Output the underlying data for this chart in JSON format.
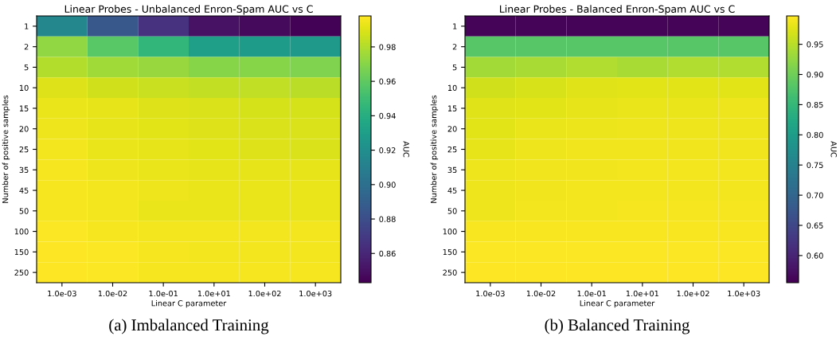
{
  "chart_data": [
    {
      "type": "heatmap",
      "title": "Linear Probes - Unbalanced Enron-Spam AUC vs C",
      "xlabel": "Linear C parameter",
      "ylabel": "Number of positive samples",
      "clabel": "AUC",
      "categories": [
        "1.0e-03",
        "1.0e-02",
        "1.0e-01",
        "1.0e+01",
        "1.0e+02",
        "1.0e+03"
      ],
      "y_categories": [
        "1",
        "2",
        "5",
        "10",
        "15",
        "20",
        "25",
        "35",
        "45",
        "50",
        "100",
        "150",
        "250"
      ],
      "cells": [
        [
          0.915,
          0.885,
          0.865,
          0.85,
          0.847,
          0.844
        ],
        [
          0.972,
          0.958,
          0.945,
          0.93,
          0.928,
          0.927
        ],
        [
          0.98,
          0.976,
          0.974,
          0.97,
          0.97,
          0.968
        ],
        [
          0.99,
          0.987,
          0.985,
          0.984,
          0.983,
          0.982
        ],
        [
          0.993,
          0.992,
          0.99,
          0.989,
          0.988,
          0.988
        ],
        [
          0.994,
          0.992,
          0.991,
          0.99,
          0.989,
          0.989
        ],
        [
          0.995,
          0.993,
          0.992,
          0.991,
          0.99,
          0.989
        ],
        [
          0.996,
          0.994,
          0.993,
          0.992,
          0.992,
          0.992
        ],
        [
          0.996,
          0.995,
          0.994,
          0.993,
          0.993,
          0.993
        ],
        [
          0.996,
          0.995,
          0.993,
          0.993,
          0.993,
          0.993
        ],
        [
          0.997,
          0.996,
          0.995,
          0.995,
          0.995,
          0.995
        ],
        [
          0.998,
          0.997,
          0.996,
          0.995,
          0.995,
          0.995
        ],
        [
          0.998,
          0.997,
          0.996,
          0.996,
          0.996,
          0.996
        ]
      ],
      "clim": [
        0.843,
        0.998
      ],
      "cticks": [
        {
          "value": 0.86,
          "label": "0.86"
        },
        {
          "value": 0.88,
          "label": "0.88"
        },
        {
          "value": 0.9,
          "label": "0.90"
        },
        {
          "value": 0.92,
          "label": "0.92"
        },
        {
          "value": 0.94,
          "label": "0.94"
        },
        {
          "value": 0.96,
          "label": "0.96"
        },
        {
          "value": 0.98,
          "label": "0.98"
        }
      ],
      "annotations": [
        "(a) Imbalanced Training"
      ]
    },
    {
      "type": "heatmap",
      "title": "Linear Probes - Balanced Enron-Spam AUC vs C",
      "xlabel": "Linear C parameter",
      "ylabel": "Number of positive samples",
      "clabel": "AUC",
      "categories": [
        "1.0e-03",
        "1.0e-02",
        "1.0e-01",
        "1.0e+01",
        "1.0e+02",
        "1.0e+03"
      ],
      "y_categories": [
        "1",
        "2",
        "5",
        "10",
        "15",
        "20",
        "25",
        "35",
        "45",
        "50",
        "100",
        "150",
        "250"
      ],
      "cells": [
        [
          0.56,
          0.56,
          0.56,
          0.56,
          0.56,
          0.56
        ],
        [
          0.88,
          0.88,
          0.88,
          0.88,
          0.88,
          0.88
        ],
        [
          0.935,
          0.94,
          0.945,
          0.94,
          0.945,
          0.945
        ],
        [
          0.965,
          0.97,
          0.975,
          0.978,
          0.978,
          0.978
        ],
        [
          0.975,
          0.978,
          0.98,
          0.982,
          0.982,
          0.985
        ],
        [
          0.978,
          0.982,
          0.984,
          0.986,
          0.986,
          0.986
        ],
        [
          0.98,
          0.985,
          0.987,
          0.988,
          0.988,
          0.988
        ],
        [
          0.985,
          0.987,
          0.988,
          0.989,
          0.989,
          0.989
        ],
        [
          0.986,
          0.988,
          0.989,
          0.99,
          0.99,
          0.99
        ],
        [
          0.986,
          0.99,
          0.99,
          0.991,
          0.991,
          0.991
        ],
        [
          0.993,
          0.993,
          0.993,
          0.993,
          0.993,
          0.993
        ],
        [
          0.994,
          0.994,
          0.994,
          0.994,
          0.994,
          0.994
        ],
        [
          0.996,
          0.996,
          0.996,
          0.996,
          0.996,
          0.996
        ]
      ],
      "clim": [
        0.555,
        0.997
      ],
      "cticks": [
        {
          "value": 0.6,
          "label": "0.60"
        },
        {
          "value": 0.65,
          "label": "0.65"
        },
        {
          "value": 0.7,
          "label": "0.70"
        },
        {
          "value": 0.75,
          "label": "0.75"
        },
        {
          "value": 0.8,
          "label": "0.80"
        },
        {
          "value": 0.85,
          "label": "0.85"
        },
        {
          "value": 0.9,
          "label": "0.90"
        },
        {
          "value": 0.95,
          "label": "0.95"
        }
      ],
      "annotations": [
        "(b) Balanced Training"
      ]
    }
  ]
}
